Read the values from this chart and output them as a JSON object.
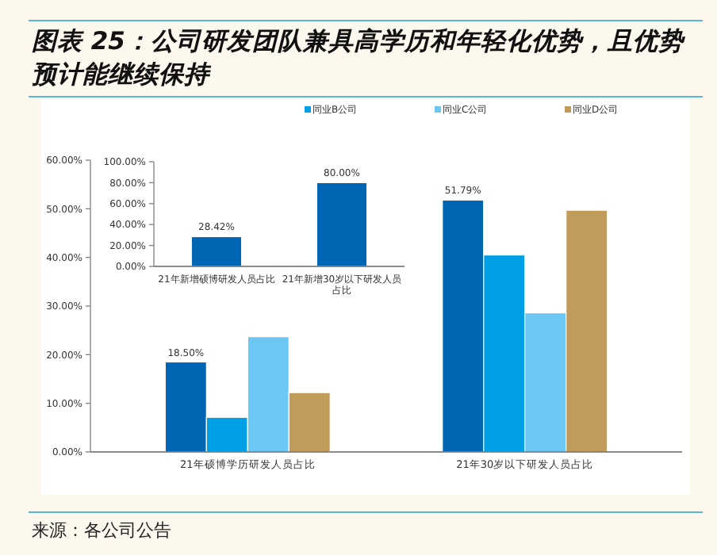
{
  "chart_data": [
    {
      "type": "bar",
      "title": "图表 25：公司研发团队兼具高学历和年轻化优势，且优势预计能继续保持",
      "categories": [
        "21年硕博学历研发人员占比",
        "21年30岁以下研发人员占比"
      ],
      "series": [
        {
          "color": "#0066b3",
          "values": [
            18.5,
            51.79
          ],
          "value_labels": [
            "18.50%",
            "51.79%"
          ]
        },
        {
          "name": "同业B公司",
          "color": "#00a0e6",
          "values": [
            7.1,
            40.5
          ]
        },
        {
          "name": "同业C公司",
          "color": "#6cc7f5",
          "values": [
            23.7,
            28.6
          ]
        },
        {
          "name": "同业D公司",
          "color": "#c09b5a",
          "values": [
            12.2,
            49.7
          ]
        }
      ],
      "ylim": [
        0,
        60
      ],
      "yticks": [
        {
          "value": 0,
          "label": "0.00%"
        },
        {
          "value": 10,
          "label": "10.00%"
        },
        {
          "value": 20,
          "label": "20.00%"
        },
        {
          "value": 30,
          "label": "30.00%"
        },
        {
          "value": 40,
          "label": "40.00%"
        },
        {
          "value": 50,
          "label": "50.00%"
        },
        {
          "value": 60,
          "label": "60.00%"
        }
      ],
      "legend": "top",
      "annotations": [
        "来源：各公司公告"
      ]
    },
    {
      "type": "bar",
      "categories": [
        "21年新增硕博研发人员占比",
        "21年新增30岁以下研发人员占比"
      ],
      "series": [
        {
          "color": "#0066b3",
          "values": [
            28.42,
            80
          ],
          "value_labels": [
            "28.42%",
            "80.00%"
          ]
        }
      ],
      "ylim": [
        0,
        100
      ],
      "yticks": [
        {
          "value": 0,
          "label": "0.00%"
        },
        {
          "value": 20,
          "label": "20.00%"
        },
        {
          "value": 40,
          "label": "40.00%"
        },
        {
          "value": 60,
          "label": "60.00%"
        },
        {
          "value": 80,
          "label": "80.00%"
        },
        {
          "value": 100,
          "label": "100.00%"
        }
      ]
    }
  ]
}
